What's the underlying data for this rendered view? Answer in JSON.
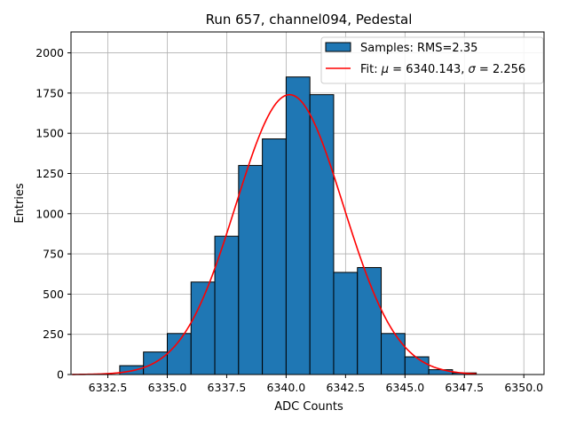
{
  "chart_data": {
    "type": "bar",
    "title": "Run 657, channel094, Pedestal",
    "xlabel": "ADC Counts",
    "ylabel": "Entries",
    "xlim": [
      6330.95,
      6350.85
    ],
    "ylim": [
      0,
      2130
    ],
    "xticks": [
      6332.5,
      6335.0,
      6337.5,
      6340.0,
      6342.5,
      6345.0,
      6347.5,
      6350.0
    ],
    "xtick_labels": [
      "6332.5",
      "6335.0",
      "6337.5",
      "6340.0",
      "6342.5",
      "6345.0",
      "6347.5",
      "6350.0"
    ],
    "yticks": [
      0,
      250,
      500,
      750,
      1000,
      1250,
      1500,
      1750,
      2000
    ],
    "ytick_labels": [
      "0",
      "250",
      "500",
      "750",
      "1000",
      "1250",
      "1500",
      "1750",
      "2000"
    ],
    "grid": true,
    "legend_position": "top-right",
    "histogram": {
      "name": "Samples: RMS=2.35",
      "color": "#1f77b4",
      "edge_color": "#000000",
      "bins": [
        {
          "x0": 6333,
          "x1": 6334,
          "value": 55
        },
        {
          "x0": 6334,
          "x1": 6335,
          "value": 140
        },
        {
          "x0": 6335,
          "x1": 6336,
          "value": 255
        },
        {
          "x0": 6336,
          "x1": 6337,
          "value": 575
        },
        {
          "x0": 6337,
          "x1": 6338,
          "value": 860
        },
        {
          "x0": 6338,
          "x1": 6339,
          "value": 1300
        },
        {
          "x0": 6339,
          "x1": 6340,
          "value": 1465
        },
        {
          "x0": 6340,
          "x1": 6341,
          "value": 1850
        },
        {
          "x0": 6341,
          "x1": 6342,
          "value": 1740
        },
        {
          "x0": 6342,
          "x1": 6343,
          "value": 635
        },
        {
          "x0": 6343,
          "x1": 6344,
          "value": 665
        },
        {
          "x0": 6344,
          "x1": 6345,
          "value": 255
        },
        {
          "x0": 6345,
          "x1": 6346,
          "value": 110
        },
        {
          "x0": 6346,
          "x1": 6347,
          "value": 30
        },
        {
          "x0": 6347,
          "x1": 6348,
          "value": 10
        }
      ]
    },
    "fit": {
      "name_prefix": "Fit: ",
      "mu_symbol": "μ",
      "mu_value": "6340.143",
      "sigma_symbol": "σ",
      "sigma_value": "2.256",
      "color": "#ff0000",
      "mu": 6340.143,
      "sigma": 2.256,
      "amplitude": 1740,
      "x_range": [
        6331.0,
        6348.0
      ]
    }
  }
}
